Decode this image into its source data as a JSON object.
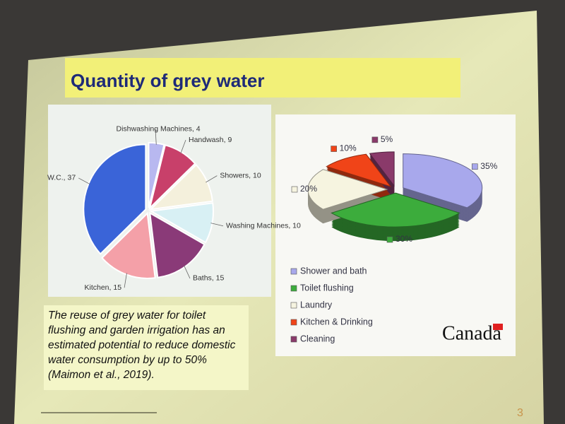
{
  "slide": {
    "title": "Quantity of grey water",
    "note": "The reuse of grey water for toilet flushing and garden irrigation has an estimated potential to reduce domestic water consumption by up to 50% (Maimon et al., 2019).",
    "logo": "Canada",
    "page": 3
  },
  "chart_data": [
    {
      "type": "pie",
      "values": [
        4,
        9,
        10,
        10,
        15,
        15,
        37
      ],
      "value_labels": [
        "Dishwashing Machines, 4",
        "Handwash, 9",
        "Showers, 10",
        "Washing Machines, 10",
        "Baths, 15",
        "Kitchen, 15",
        "W.C., 37"
      ],
      "colors": [
        "#b8b8f0",
        "#c8406a",
        "#f4f0dc",
        "#d8f0f4",
        "#8a3a78",
        "#f4a0a8",
        "#3a64d8"
      ]
    },
    {
      "type": "pie",
      "3d": true,
      "categories": [
        "Shower and bath",
        "Toilet flushing",
        "Laundry",
        "Kitchen & Drinking",
        "Cleaning"
      ],
      "values": [
        35,
        30,
        20,
        10,
        5
      ],
      "value_labels": [
        "35%",
        "30%",
        "20%",
        "10%",
        "5%"
      ],
      "colors": [
        "#a8a8ec",
        "#3cac3c",
        "#f6f4e0",
        "#f04418",
        "#8a3a6a"
      ]
    }
  ]
}
